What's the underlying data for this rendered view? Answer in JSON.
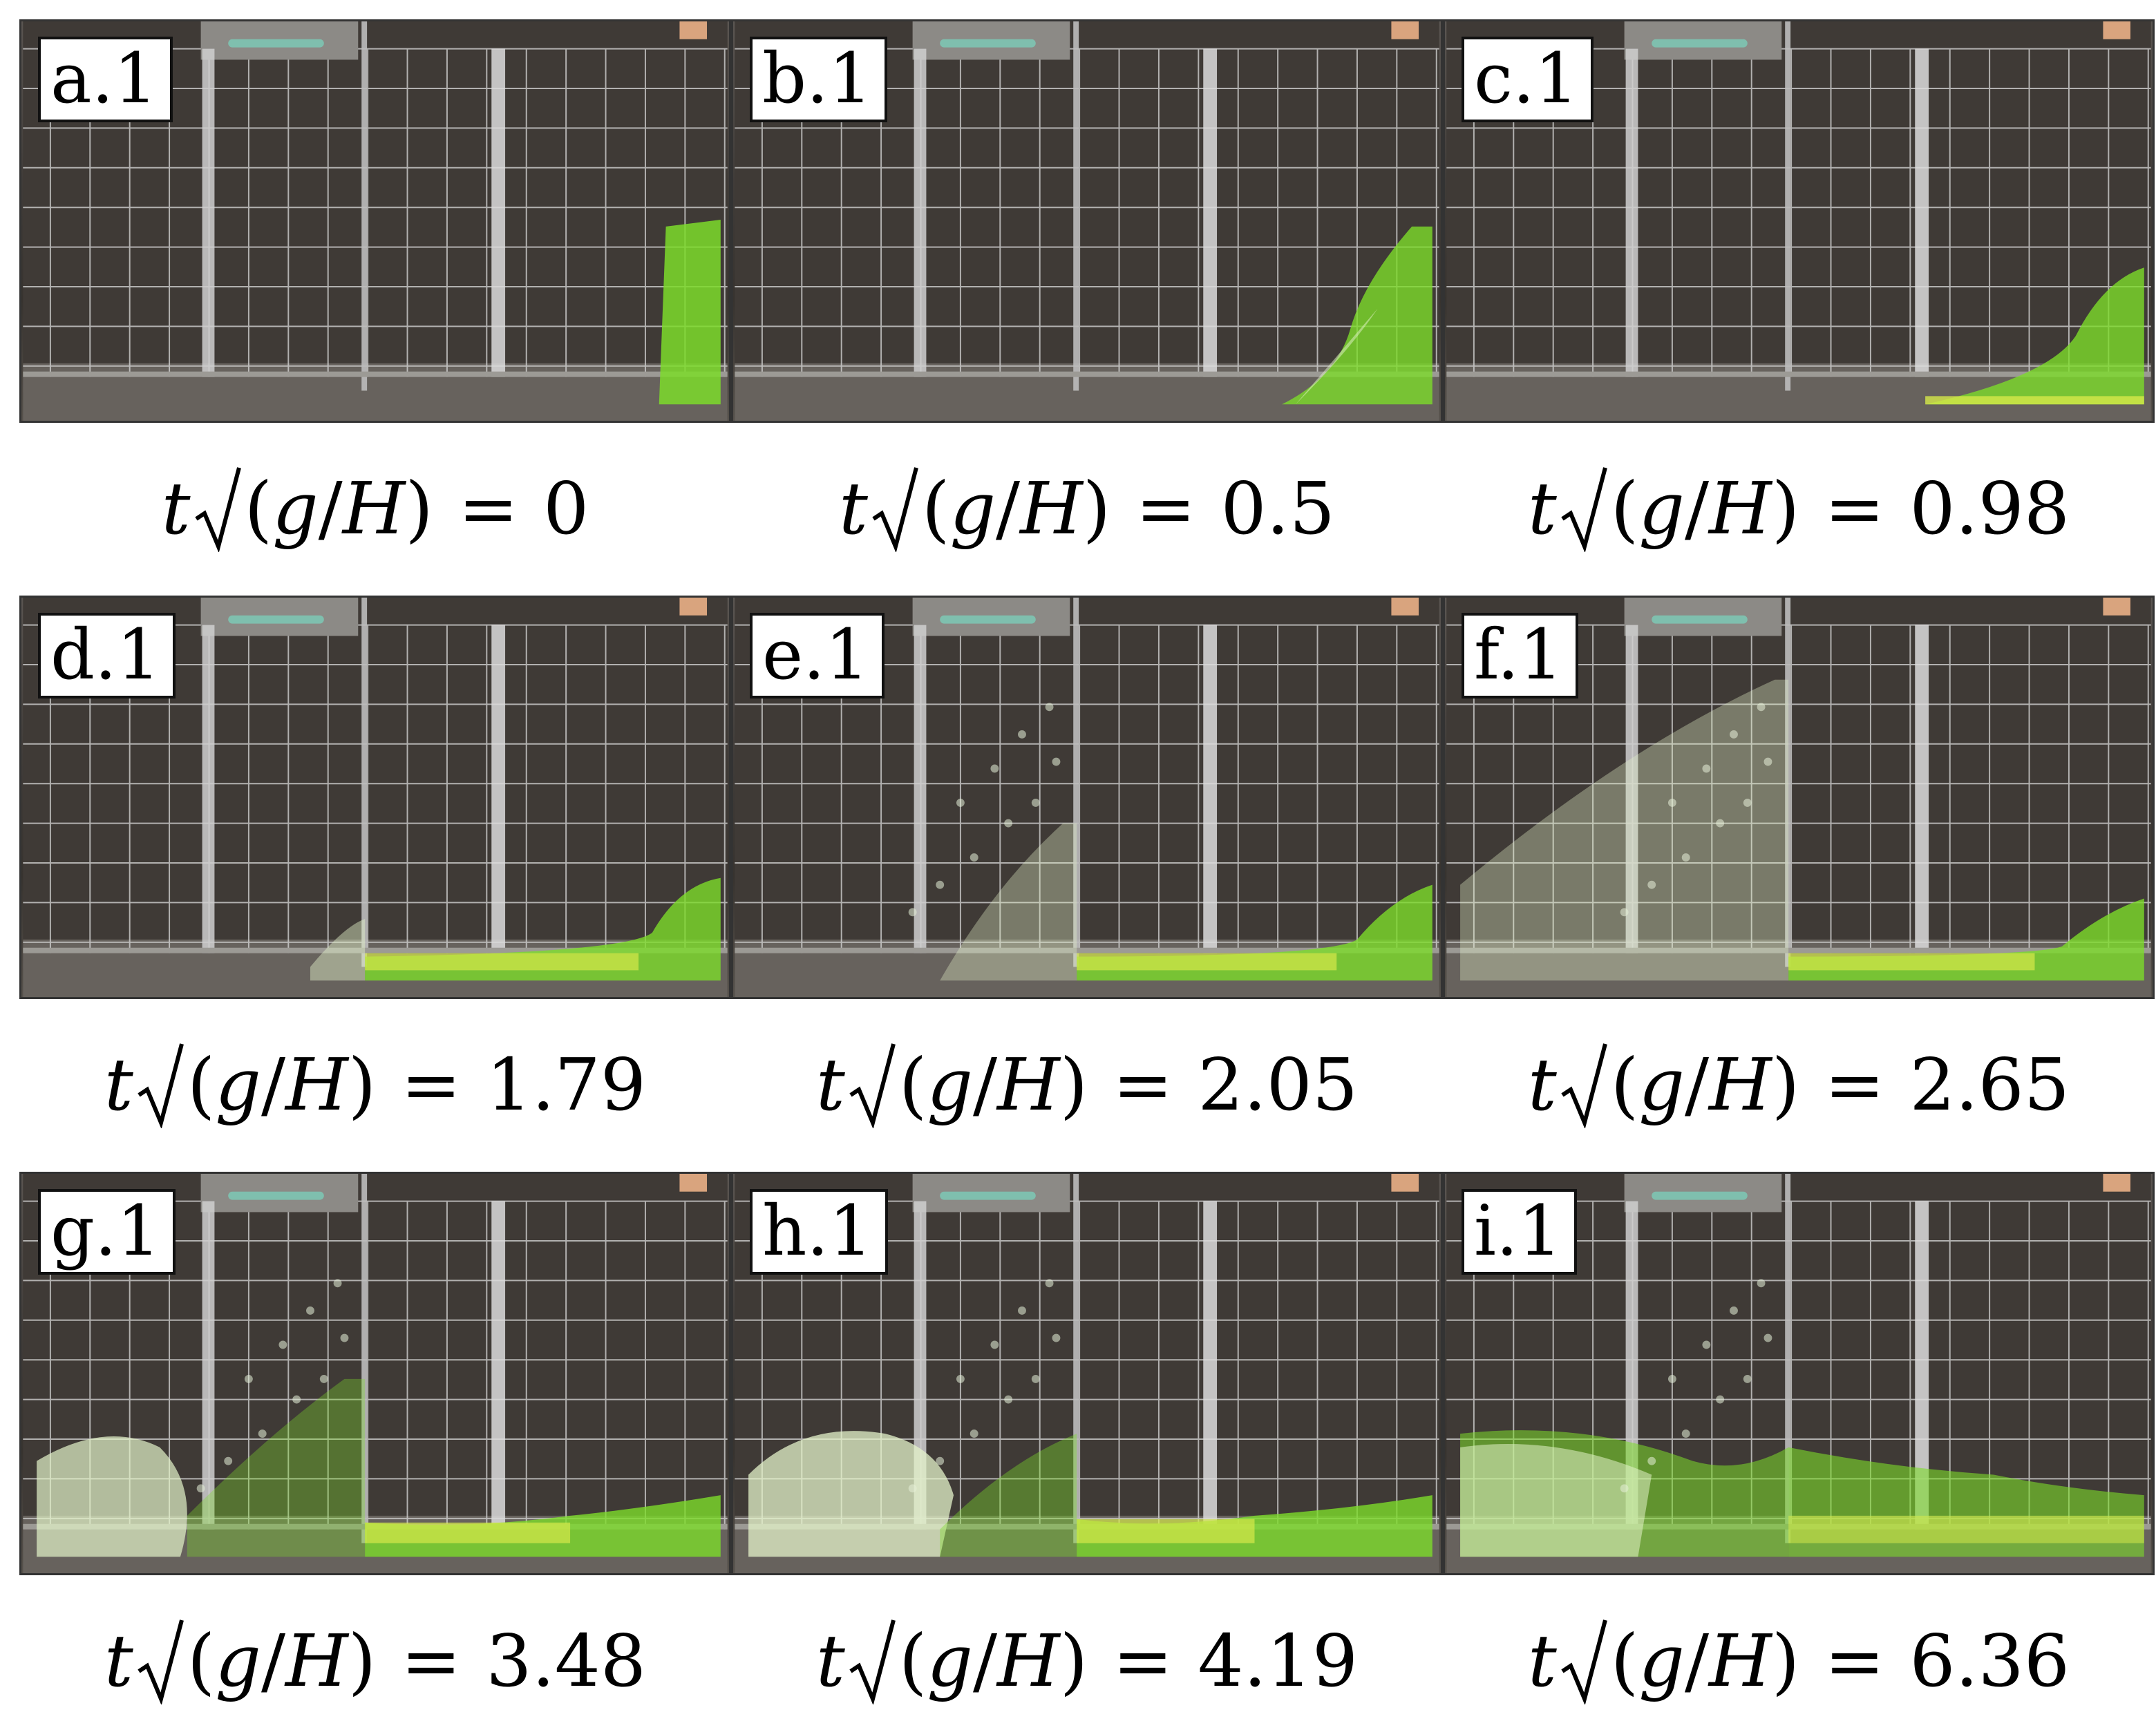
{
  "panels": [
    {
      "label": "a.1",
      "stage": 0,
      "caption": {
        "t": "t",
        "paren_open": "(",
        "g": "g",
        "slash": "/",
        "H": "H",
        "paren_close": ")",
        "eq": "=",
        "value": "0"
      }
    },
    {
      "label": "b.1",
      "stage": 1,
      "caption": {
        "t": "t",
        "paren_open": "(",
        "g": "g",
        "slash": "/",
        "H": "H",
        "paren_close": ")",
        "eq": "=",
        "value": "0.5"
      }
    },
    {
      "label": "c.1",
      "stage": 2,
      "caption": {
        "t": "t",
        "paren_open": "(",
        "g": "g",
        "slash": "/",
        "H": "H",
        "paren_close": ")",
        "eq": "=",
        "value": "0.98"
      }
    },
    {
      "label": "d.1",
      "stage": 3,
      "caption": {
        "t": "t",
        "paren_open": "(",
        "g": "g",
        "slash": "/",
        "H": "H",
        "paren_close": ")",
        "eq": "=",
        "value": "1.79"
      }
    },
    {
      "label": "e.1",
      "stage": 4,
      "caption": {
        "t": "t",
        "paren_open": "(",
        "g": "g",
        "slash": "/",
        "H": "H",
        "paren_close": ")",
        "eq": "=",
        "value": "2.05"
      }
    },
    {
      "label": "f.1",
      "stage": 5,
      "caption": {
        "t": "t",
        "paren_open": "(",
        "g": "g",
        "slash": "/",
        "H": "H",
        "paren_close": ")",
        "eq": "=",
        "value": "2.65"
      }
    },
    {
      "label": "g.1",
      "stage": 6,
      "caption": {
        "t": "t",
        "paren_open": "(",
        "g": "g",
        "slash": "/",
        "H": "H",
        "paren_close": ")",
        "eq": "=",
        "value": "3.48"
      }
    },
    {
      "label": "h.1",
      "stage": 7,
      "caption": {
        "t": "t",
        "paren_open": "(",
        "g": "g",
        "slash": "/",
        "H": "H",
        "paren_close": ")",
        "eq": "=",
        "value": "4.19"
      }
    },
    {
      "label": "i.1",
      "stage": 8,
      "caption": {
        "t": "t",
        "paren_open": "(",
        "g": "g",
        "slash": "/",
        "H": "H",
        "paren_close": ")",
        "eq": "=",
        "value": "6.36"
      }
    }
  ],
  "colors": {
    "water_green": "#7ddc2a",
    "water_yellow": "#d6e84a",
    "foam": "#e4f3c9",
    "grid": "#d9d9d9",
    "background": "#3f3a36",
    "tank_frame": "#9c9a95"
  }
}
